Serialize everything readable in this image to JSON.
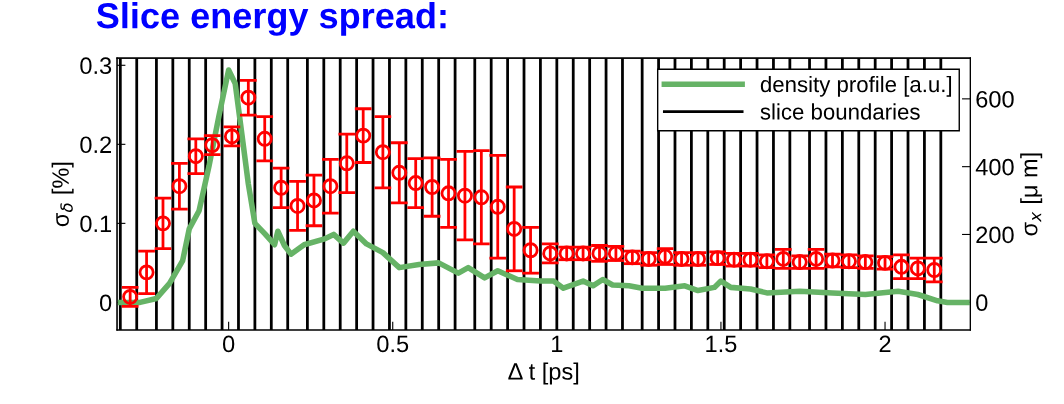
{
  "chart_data": {
    "type": "scatter",
    "title": "Slice energy spread:",
    "xlabel": "Δ t [ps]",
    "ylabel": "σ$_{δ}$ [%]",
    "y2label": "σ$_{x}$ [μ m]",
    "xlim": [
      -0.34,
      2.26
    ],
    "xticks": [
      0,
      0.5,
      1,
      1.5,
      2
    ],
    "ylim": [
      -0.035,
      0.309
    ],
    "yticks": [
      0,
      0.1,
      0.2,
      0.3
    ],
    "y2lim": [
      -82,
      720
    ],
    "y2ticks": [
      0,
      200,
      400,
      600
    ],
    "grid": false,
    "legend": "top right",
    "series": [
      {
        "name": "density profile [a.u.]",
        "type": "line",
        "color": "#66b366",
        "marker": "none",
        "line_style": "solid",
        "x": [
          -0.33,
          -0.27,
          -0.22,
          -0.18,
          -0.14,
          -0.12,
          -0.09,
          -0.06,
          -0.03,
          0.0,
          0.02,
          0.04,
          0.06,
          0.08,
          0.11,
          0.14,
          0.15,
          0.17,
          0.19,
          0.23,
          0.29,
          0.32,
          0.35,
          0.38,
          0.42,
          0.47,
          0.52,
          0.58,
          0.64,
          0.7,
          0.73,
          0.78,
          0.82,
          0.88,
          0.95,
          0.99,
          1.02,
          1.08,
          1.11,
          1.14,
          1.17,
          1.22,
          1.26,
          1.33,
          1.39,
          1.43,
          1.48,
          1.5,
          1.53,
          1.59,
          1.64,
          1.74,
          1.84,
          1.94,
          2.04,
          2.1,
          2.16,
          2.19,
          2.25
        ],
        "values": [
          0,
          0,
          0.005,
          0.024,
          0.053,
          0.093,
          0.116,
          0.172,
          0.235,
          0.294,
          0.277,
          0.214,
          0.15,
          0.1,
          0.087,
          0.073,
          0.09,
          0.072,
          0.061,
          0.073,
          0.08,
          0.086,
          0.075,
          0.09,
          0.074,
          0.063,
          0.044,
          0.048,
          0.05,
          0.037,
          0.044,
          0.031,
          0.04,
          0.029,
          0.027,
          0.027,
          0.018,
          0.027,
          0.021,
          0.029,
          0.022,
          0.021,
          0.018,
          0.018,
          0.021,
          0.015,
          0.019,
          0.027,
          0.019,
          0.017,
          0.012,
          0.014,
          0.012,
          0.01,
          0.014,
          0.01,
          0.002,
          0,
          0
        ]
      },
      {
        "color": "#ff0000",
        "marker": "circle",
        "line_style": "none",
        "x": [
          -0.3,
          -0.25,
          -0.2,
          -0.15,
          -0.1,
          -0.05,
          0.01,
          0.06,
          0.11,
          0.16,
          0.21,
          0.26,
          0.31,
          0.36,
          0.41,
          0.47,
          0.52,
          0.57,
          0.62,
          0.67,
          0.72,
          0.77,
          0.82,
          0.87,
          0.92,
          0.98,
          1.03,
          1.08,
          1.13,
          1.18,
          1.23,
          1.28,
          1.33,
          1.38,
          1.43,
          1.49,
          1.54,
          1.59,
          1.64,
          1.69,
          1.74,
          1.79,
          1.84,
          1.89,
          1.94,
          2.0,
          2.05,
          2.1,
          2.15
        ],
        "values": [
          0.007,
          0.038,
          0.1,
          0.147,
          0.185,
          0.199,
          0.21,
          0.259,
          0.207,
          0.145,
          0.122,
          0.129,
          0.147,
          0.176,
          0.211,
          0.19,
          0.164,
          0.151,
          0.146,
          0.138,
          0.135,
          0.133,
          0.121,
          0.093,
          0.066,
          0.062,
          0.062,
          0.062,
          0.062,
          0.062,
          0.057,
          0.055,
          0.058,
          0.055,
          0.055,
          0.056,
          0.054,
          0.054,
          0.052,
          0.055,
          0.051,
          0.055,
          0.053,
          0.052,
          0.051,
          0.05,
          0.045,
          0.043,
          0.041
        ],
        "errors": [
          0.012,
          0.027,
          0.032,
          0.029,
          0.022,
          0.012,
          0.012,
          0.022,
          0.028,
          0.025,
          0.031,
          0.032,
          0.034,
          0.037,
          0.034,
          0.045,
          0.038,
          0.031,
          0.037,
          0.043,
          0.056,
          0.059,
          0.065,
          0.053,
          0.029,
          0.012,
          0.008,
          0.008,
          0.01,
          0.009,
          0.008,
          0.008,
          0.01,
          0.008,
          0.008,
          0.008,
          0.008,
          0.008,
          0.008,
          0.012,
          0.008,
          0.012,
          0.008,
          0.008,
          0.008,
          0.008,
          0.015,
          0.013,
          0.015
        ]
      }
    ],
    "ref_lines": [
      {
        "axis": "x",
        "value": -0.33,
        "label": "slice boundaries",
        "color": "#000000"
      },
      {
        "axis": "x",
        "value": -0.28,
        "color": "#000000"
      },
      {
        "axis": "x",
        "value": -0.22,
        "color": "#000000"
      },
      {
        "axis": "x",
        "value": -0.17,
        "color": "#000000"
      },
      {
        "axis": "x",
        "value": -0.12,
        "color": "#000000"
      },
      {
        "axis": "x",
        "value": -0.07,
        "color": "#000000"
      },
      {
        "axis": "x",
        "value": -0.02,
        "color": "#000000"
      },
      {
        "axis": "x",
        "value": 0.03,
        "color": "#000000"
      },
      {
        "axis": "x",
        "value": 0.08,
        "color": "#000000"
      },
      {
        "axis": "x",
        "value": 0.13,
        "color": "#000000"
      },
      {
        "axis": "x",
        "value": 0.18,
        "color": "#000000"
      },
      {
        "axis": "x",
        "value": 0.24,
        "color": "#000000"
      },
      {
        "axis": "x",
        "value": 0.29,
        "color": "#000000"
      },
      {
        "axis": "x",
        "value": 0.34,
        "color": "#000000"
      },
      {
        "axis": "x",
        "value": 0.39,
        "color": "#000000"
      },
      {
        "axis": "x",
        "value": 0.44,
        "color": "#000000"
      },
      {
        "axis": "x",
        "value": 0.49,
        "color": "#000000"
      },
      {
        "axis": "x",
        "value": 0.54,
        "color": "#000000"
      },
      {
        "axis": "x",
        "value": 0.59,
        "color": "#000000"
      },
      {
        "axis": "x",
        "value": 0.64,
        "color": "#000000"
      },
      {
        "axis": "x",
        "value": 0.69,
        "color": "#000000"
      },
      {
        "axis": "x",
        "value": 0.75,
        "color": "#000000"
      },
      {
        "axis": "x",
        "value": 0.8,
        "color": "#000000"
      },
      {
        "axis": "x",
        "value": 0.85,
        "color": "#000000"
      },
      {
        "axis": "x",
        "value": 0.9,
        "color": "#000000"
      },
      {
        "axis": "x",
        "value": 0.95,
        "color": "#000000"
      },
      {
        "axis": "x",
        "value": 1.0,
        "color": "#000000"
      },
      {
        "axis": "x",
        "value": 1.05,
        "color": "#000000"
      },
      {
        "axis": "x",
        "value": 1.1,
        "color": "#000000"
      },
      {
        "axis": "x",
        "value": 1.15,
        "color": "#000000"
      },
      {
        "axis": "x",
        "value": 1.2,
        "color": "#000000"
      },
      {
        "axis": "x",
        "value": 1.26,
        "color": "#000000"
      },
      {
        "axis": "x",
        "value": 1.31,
        "color": "#000000"
      },
      {
        "axis": "x",
        "value": 1.36,
        "color": "#000000"
      },
      {
        "axis": "x",
        "value": 1.41,
        "color": "#000000"
      },
      {
        "axis": "x",
        "value": 1.46,
        "color": "#000000"
      },
      {
        "axis": "x",
        "value": 1.51,
        "color": "#000000"
      },
      {
        "axis": "x",
        "value": 1.56,
        "color": "#000000"
      },
      {
        "axis": "x",
        "value": 1.61,
        "color": "#000000"
      },
      {
        "axis": "x",
        "value": 1.66,
        "color": "#000000"
      },
      {
        "axis": "x",
        "value": 1.71,
        "color": "#000000"
      },
      {
        "axis": "x",
        "value": 1.77,
        "color": "#000000"
      },
      {
        "axis": "x",
        "value": 1.82,
        "color": "#000000"
      },
      {
        "axis": "x",
        "value": 1.87,
        "color": "#000000"
      },
      {
        "axis": "x",
        "value": 1.92,
        "color": "#000000"
      },
      {
        "axis": "x",
        "value": 1.97,
        "color": "#000000"
      },
      {
        "axis": "x",
        "value": 2.02,
        "color": "#000000"
      },
      {
        "axis": "x",
        "value": 2.07,
        "color": "#000000"
      },
      {
        "axis": "x",
        "value": 2.12,
        "color": "#000000"
      },
      {
        "axis": "x",
        "value": 2.17,
        "color": "#000000"
      }
    ]
  }
}
